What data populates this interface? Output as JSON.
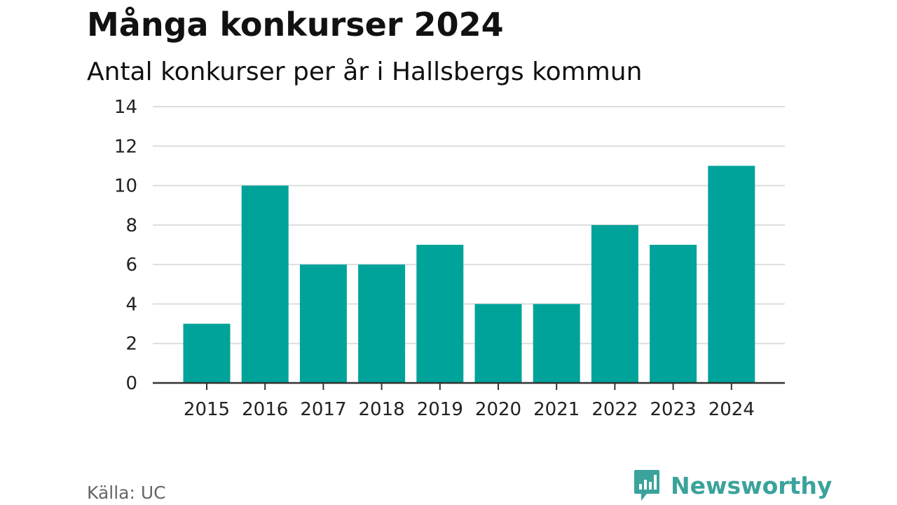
{
  "header": {
    "title": "Många konkurser 2024",
    "subtitle": "Antal konkurser per år i Hallsbergs kommun"
  },
  "footer": {
    "source": "Källa: UC",
    "brand": "Newsworthy",
    "brand_icon": "newsworthy-logo-icon"
  },
  "colors": {
    "bar": "#00a39a",
    "grid": "#dddddd",
    "axis": "#333333",
    "brand": "#3aa39b"
  },
  "chart_data": {
    "type": "bar",
    "categories": [
      "2015",
      "2016",
      "2017",
      "2018",
      "2019",
      "2020",
      "2021",
      "2022",
      "2023",
      "2024"
    ],
    "values": [
      3,
      10,
      6,
      6,
      7,
      4,
      4,
      8,
      7,
      11
    ],
    "title": "Många konkurser 2024",
    "subtitle": "Antal konkurser per år i Hallsbergs kommun",
    "xlabel": "",
    "ylabel": "",
    "ylim": [
      0,
      14
    ],
    "yticks": [
      0,
      2,
      4,
      6,
      8,
      10,
      12,
      14
    ],
    "grid": true,
    "legend": "none"
  }
}
